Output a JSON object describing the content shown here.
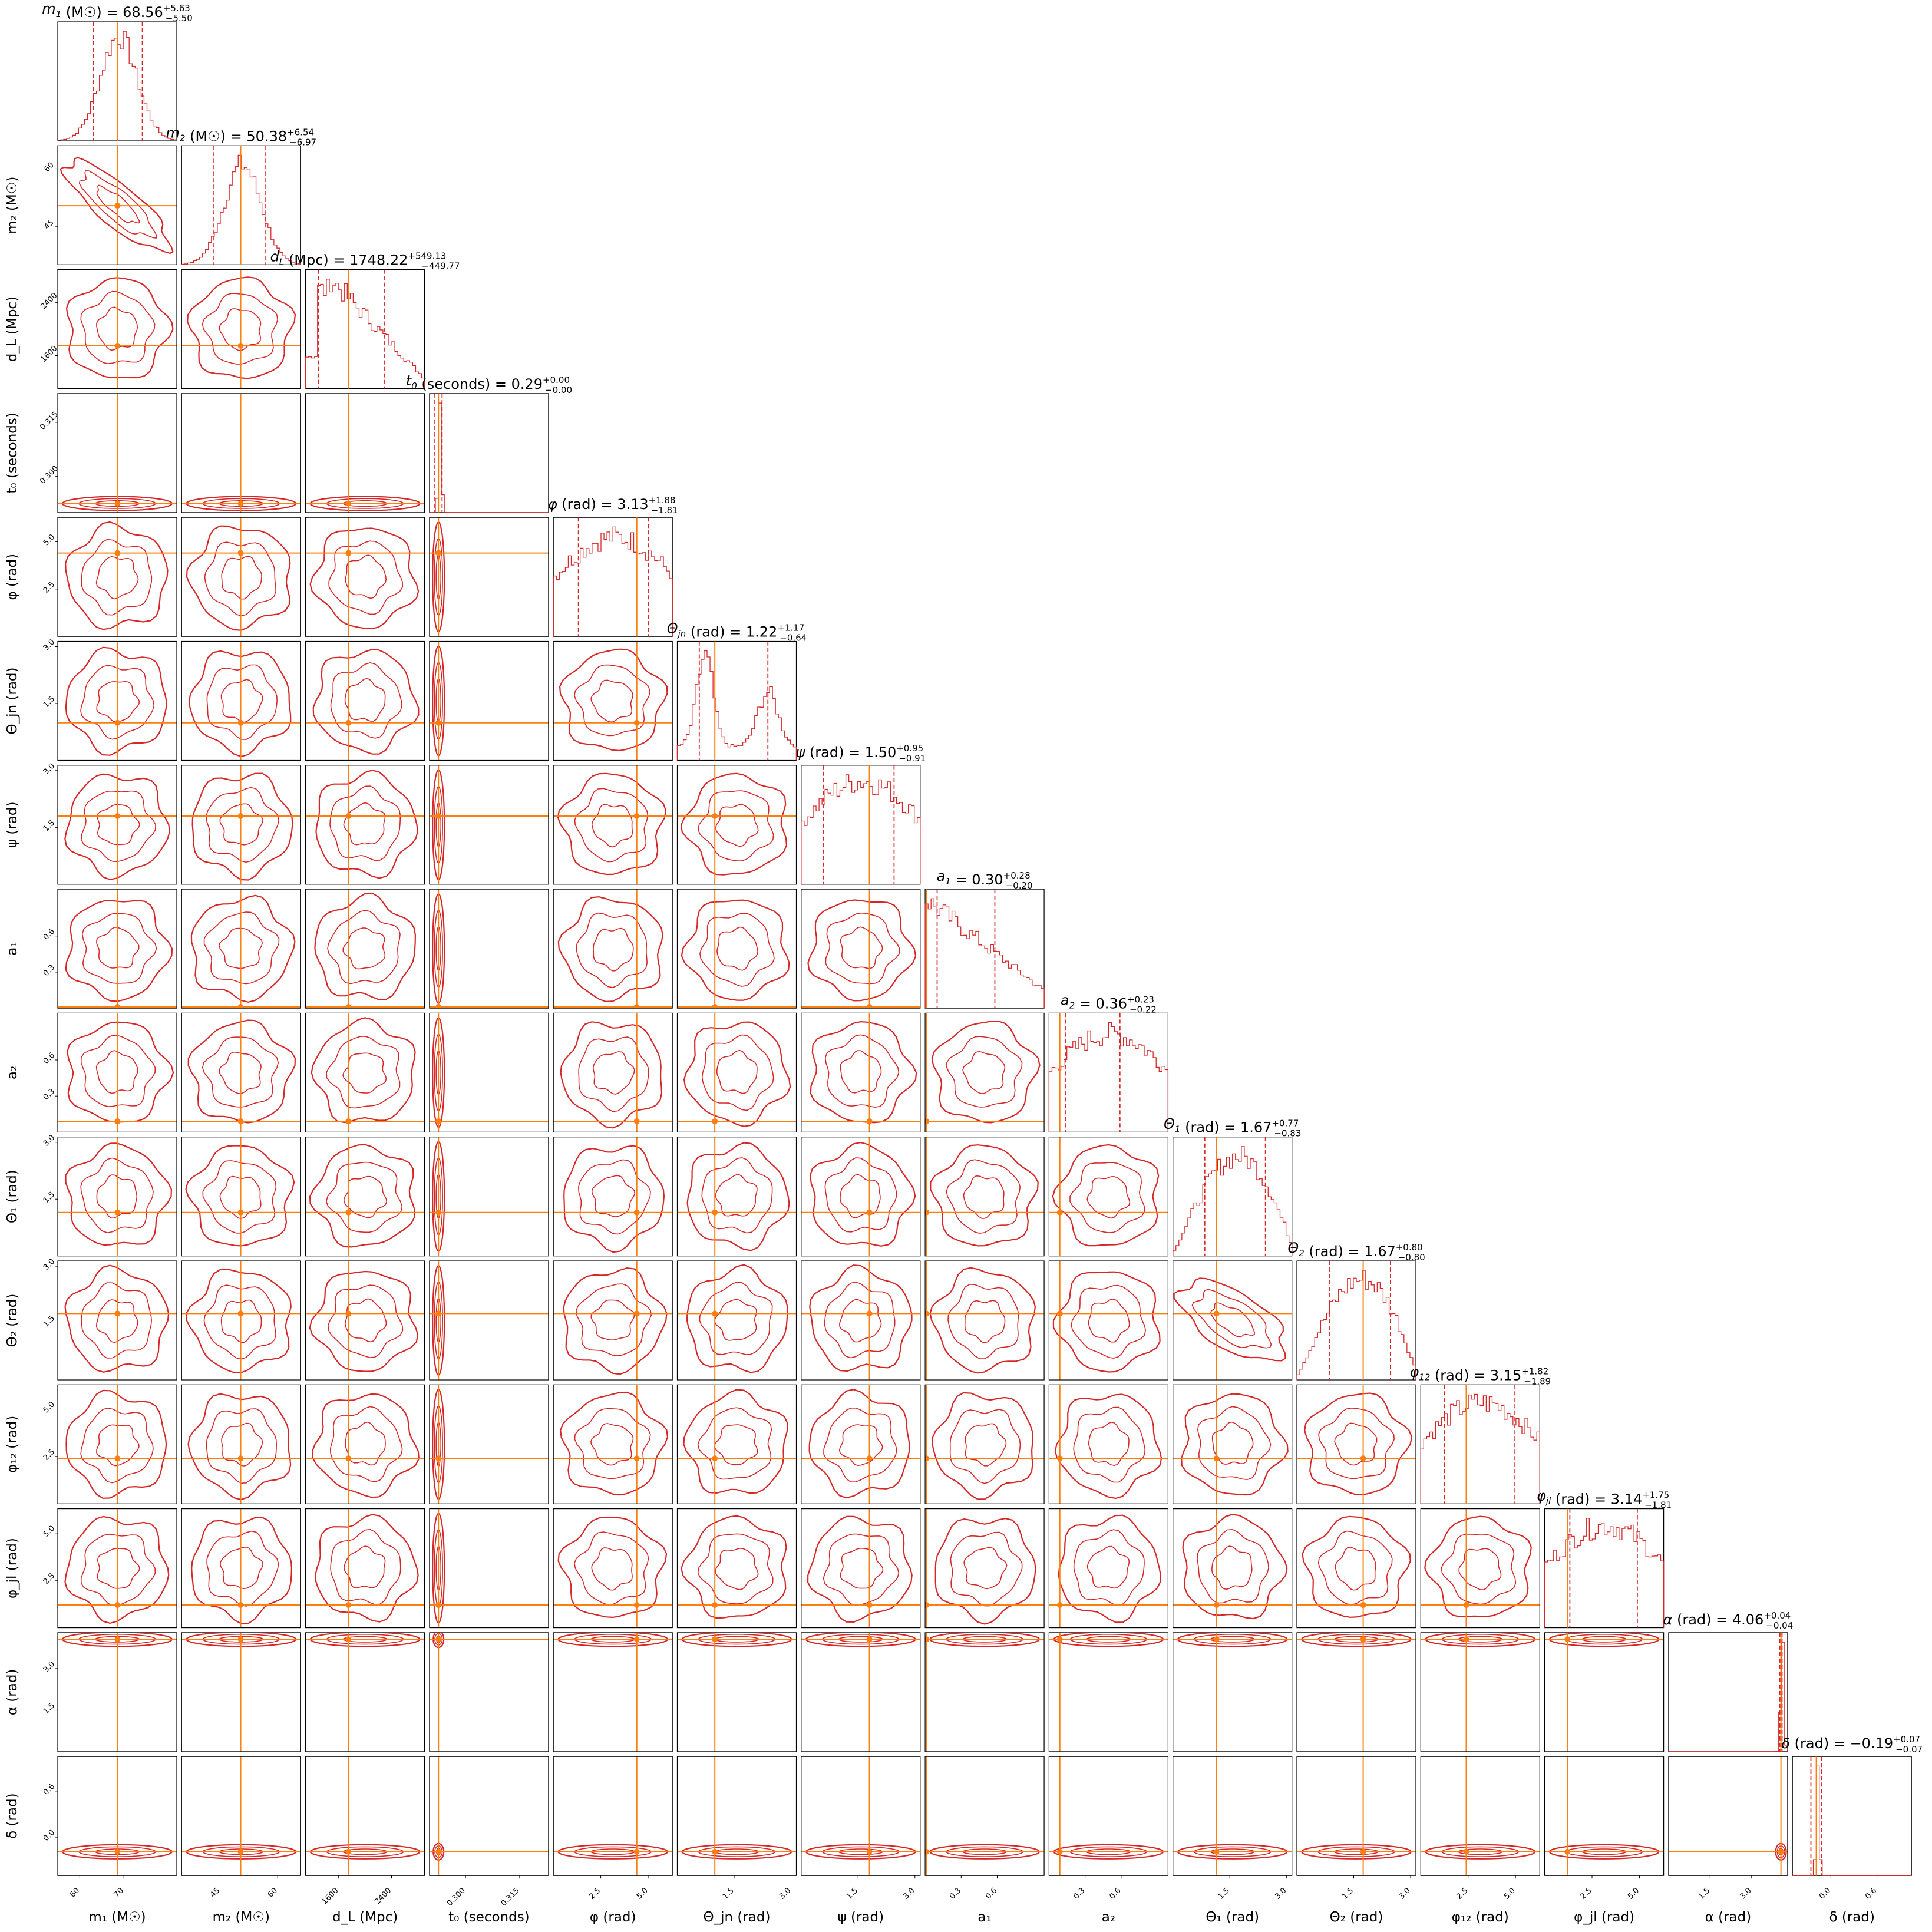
{
  "chart_data": {
    "type": "corner",
    "colors": {
      "posterior": "#d62728",
      "truth": "#ff7f0e",
      "frame": "#000000"
    },
    "params": [
      {
        "key": "m1",
        "sym": "m",
        "sub": "1",
        "unit": "M☉",
        "axis_label": "m₁ (M☉)",
        "median": "68.56",
        "plus": "+5.63",
        "minus": "−5.50",
        "range": [
          55,
          82
        ],
        "ticks": [
          60,
          70
        ],
        "tick_labels": [
          "60",
          "70"
        ],
        "truth": 68.56,
        "ql": 63.06,
        "qh": 74.19,
        "hist": "unimodal"
      },
      {
        "key": "m2",
        "sym": "m",
        "sub": "2",
        "unit": "M☉",
        "axis_label": "m₂ (M☉)",
        "median": "50.38",
        "plus": "+6.54",
        "minus": "−6.97",
        "range": [
          35,
          66
        ],
        "ticks": [
          45,
          60
        ],
        "tick_labels": [
          "45",
          "60"
        ],
        "truth": 50.38,
        "ql": 43.41,
        "qh": 56.92,
        "hist": "unimodal"
      },
      {
        "key": "dL",
        "sym": "d",
        "sub": "L",
        "unit": "Mpc",
        "axis_label": "d_L (Mpc)",
        "median": "1748.22",
        "plus": "+549.13",
        "minus": "−449.77",
        "range": [
          1100,
          2900
        ],
        "ticks": [
          1600,
          2400
        ],
        "tick_labels": [
          "1600",
          "2400"
        ],
        "truth": 1748.22,
        "ql": 1298.45,
        "qh": 2297.35,
        "hist": "skew"
      },
      {
        "key": "t0",
        "sym": "t",
        "sub": "0",
        "unit": "seconds",
        "axis_label": "t₀ (seconds)",
        "median": "0.29",
        "plus": "+0.00",
        "minus": "−0.00",
        "range": [
          0.29,
          0.323
        ],
        "ticks": [
          0.3,
          0.315
        ],
        "tick_labels": [
          "0.300",
          "0.315"
        ],
        "truth": 0.2925,
        "ql": 0.2915,
        "qh": 0.2935,
        "hist": "narrow"
      },
      {
        "key": "phi",
        "sym": "φ",
        "sub": "",
        "unit": "rad",
        "axis_label": "φ (rad)",
        "median": "3.13",
        "plus": "+1.88",
        "minus": "−1.81",
        "range": [
          0,
          6.28
        ],
        "ticks": [
          2.5,
          5.0
        ],
        "tick_labels": [
          "2.5",
          "5.0"
        ],
        "truth": 4.4,
        "ql": 1.32,
        "qh": 5.01,
        "hist": "flat"
      },
      {
        "key": "theta_jn",
        "sym": "Θ",
        "sub": "jn",
        "unit": "rad",
        "axis_label": "Θ_jn (rad)",
        "median": "1.22",
        "plus": "+1.17",
        "minus": "−0.64",
        "range": [
          0,
          3.14
        ],
        "ticks": [
          1.5,
          3.0
        ],
        "tick_labels": [
          "1.5",
          "3.0"
        ],
        "truth": 0.99,
        "ql": 0.58,
        "qh": 2.39,
        "hist": "bimodal"
      },
      {
        "key": "psi",
        "sym": "ψ",
        "sub": "",
        "unit": "rad",
        "axis_label": "ψ (rad)",
        "median": "1.50",
        "plus": "+0.95",
        "minus": "−0.91",
        "range": [
          0,
          3.14
        ],
        "ticks": [
          1.5,
          3.0
        ],
        "tick_labels": [
          "1.5",
          "3.0"
        ],
        "truth": 1.8,
        "ql": 0.59,
        "qh": 2.45,
        "hist": "flat"
      },
      {
        "key": "a1",
        "sym": "a",
        "sub": "1",
        "unit": "",
        "axis_label": "a₁",
        "median": "0.30",
        "plus": "+0.28",
        "minus": "−0.20",
        "range": [
          0,
          0.99
        ],
        "ticks": [
          0.3,
          0.6
        ],
        "tick_labels": [
          "0.3",
          "0.6"
        ],
        "truth": 0.01,
        "ql": 0.1,
        "qh": 0.58,
        "hist": "decreasing"
      },
      {
        "key": "a2",
        "sym": "a",
        "sub": "2",
        "unit": "",
        "axis_label": "a₂",
        "median": "0.36",
        "plus": "+0.23",
        "minus": "−0.22",
        "range": [
          0,
          0.99
        ],
        "ticks": [
          0.3,
          0.6
        ],
        "tick_labels": [
          "0.3",
          "0.6"
        ],
        "truth": 0.09,
        "ql": 0.14,
        "qh": 0.59,
        "hist": "flat"
      },
      {
        "key": "theta1",
        "sym": "Θ",
        "sub": "1",
        "unit": "rad",
        "axis_label": "Θ₁ (rad)",
        "median": "1.67",
        "plus": "+0.77",
        "minus": "−0.83",
        "range": [
          0,
          3.14
        ],
        "ticks": [
          1.5,
          3.0
        ],
        "tick_labels": [
          "1.5",
          "3.0"
        ],
        "truth": 1.15,
        "ql": 0.84,
        "qh": 2.44,
        "hist": "sine"
      },
      {
        "key": "theta2",
        "sym": "Θ",
        "sub": "2",
        "unit": "rad",
        "axis_label": "Θ₂ (rad)",
        "median": "1.67",
        "plus": "+0.80",
        "minus": "−0.80",
        "range": [
          0,
          3.14
        ],
        "ticks": [
          1.5,
          3.0
        ],
        "tick_labels": [
          "1.5",
          "3.0"
        ],
        "truth": 1.75,
        "ql": 0.87,
        "qh": 2.47,
        "hist": "sine"
      },
      {
        "key": "phi12",
        "sym": "φ",
        "sub": "12",
        "unit": "rad",
        "axis_label": "φ₁₂ (rad)",
        "median": "3.15",
        "plus": "+1.82",
        "minus": "−1.89",
        "range": [
          0,
          6.28
        ],
        "ticks": [
          2.5,
          5.0
        ],
        "tick_labels": [
          "2.5",
          "5.0"
        ],
        "truth": 2.4,
        "ql": 1.26,
        "qh": 4.97,
        "hist": "flat"
      },
      {
        "key": "phijl",
        "sym": "φ",
        "sub": "jl",
        "unit": "rad",
        "axis_label": "φ_jl (rad)",
        "median": "3.14",
        "plus": "+1.75",
        "minus": "−1.81",
        "range": [
          0,
          6.28
        ],
        "ticks": [
          2.5,
          5.0
        ],
        "tick_labels": [
          "2.5",
          "5.0"
        ],
        "truth": 1.2,
        "ql": 1.33,
        "qh": 4.89,
        "hist": "flat"
      },
      {
        "key": "alpha",
        "sym": "α",
        "sub": "",
        "unit": "rad",
        "axis_label": "α (rad)",
        "median": "4.06",
        "plus": "+0.04",
        "minus": "−0.04",
        "range": [
          0,
          4.3
        ],
        "ticks": [
          1.5,
          3.0
        ],
        "tick_labels": [
          "1.5",
          "3.0"
        ],
        "truth": 4.06,
        "ql": 4.02,
        "qh": 4.1,
        "hist": "narrow"
      },
      {
        "key": "delta",
        "sym": "δ",
        "sub": "",
        "unit": "rad",
        "axis_label": "δ (rad)",
        "median": "−0.19",
        "plus": "+0.07",
        "minus": "−0.07",
        "range": [
          -0.5,
          1.05
        ],
        "ticks": [
          0.0,
          0.6
        ],
        "tick_labels": [
          "0.0",
          "0.6"
        ],
        "truth": -0.19,
        "ql": -0.26,
        "qh": -0.12,
        "hist": "narrow"
      }
    ],
    "grid": true,
    "legend": "none"
  }
}
